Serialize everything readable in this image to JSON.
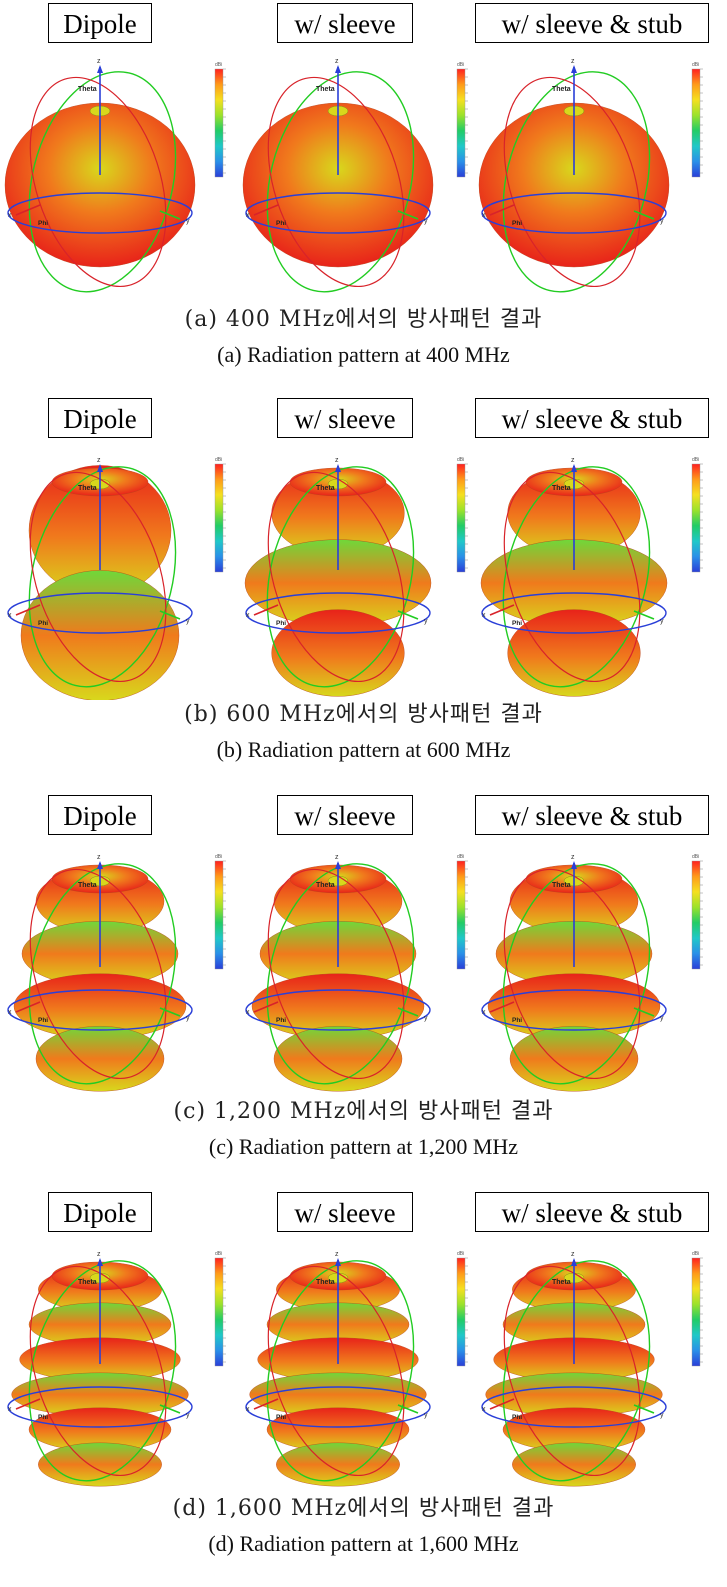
{
  "sections": [
    {
      "labels": [
        "Dipole",
        "w/ sleeve",
        "w/ sleeve & stub"
      ],
      "caption_ko": "(a) 400 MHz에서의 방사패턴 결과",
      "caption_en": "(a) Radiation pattern at 400 MHz",
      "lobes": [
        [
          1
        ],
        [
          1
        ],
        [
          1
        ]
      ]
    },
    {
      "labels": [
        "Dipole",
        "w/ sleeve",
        "w/ sleeve & stub"
      ],
      "caption_ko": "(b) 600 MHz에서의 방사패턴 결과",
      "caption_en": "(b) Radiation pattern at 600 MHz",
      "lobes": [
        [
          2
        ],
        [
          3
        ],
        [
          3
        ]
      ]
    },
    {
      "labels": [
        "Dipole",
        "w/ sleeve",
        "w/ sleeve & stub"
      ],
      "caption_ko": "(c) 1,200 MHz에서의 방사패턴 결과",
      "caption_en": "(c) Radiation pattern at 1,200 MHz",
      "lobes": [
        [
          4
        ],
        [
          4
        ],
        [
          4
        ]
      ]
    },
    {
      "labels": [
        "Dipole",
        "w/ sleeve",
        "w/ sleeve & stub"
      ],
      "caption_ko": "(d) 1,600 MHz에서의 방사패턴 결과",
      "caption_en": "(d) Radiation pattern at 1,600 MHz",
      "lobes": [
        [
          6
        ],
        [
          6
        ],
        [
          6
        ]
      ]
    }
  ],
  "axis_labels": {
    "z": "z",
    "x": "x",
    "y": "y",
    "theta": "Theta",
    "phi": "Phi"
  },
  "colorbar": {
    "unit": "dBi",
    "colors": [
      "#ff2020",
      "#ff9a1a",
      "#f5e020",
      "#9be22b",
      "#22cc66",
      "#20c8c8",
      "#2a90e8",
      "#2a3fd8"
    ]
  },
  "colors": {
    "pattern_red": "#e8231a",
    "pattern_orange": "#f07a1c",
    "pattern_yellow": "#d8d81c",
    "pattern_green": "#6fd83a",
    "ring_green": "#22cc22",
    "ring_red": "#d8232a",
    "ring_blue": "#2a3fd8"
  }
}
